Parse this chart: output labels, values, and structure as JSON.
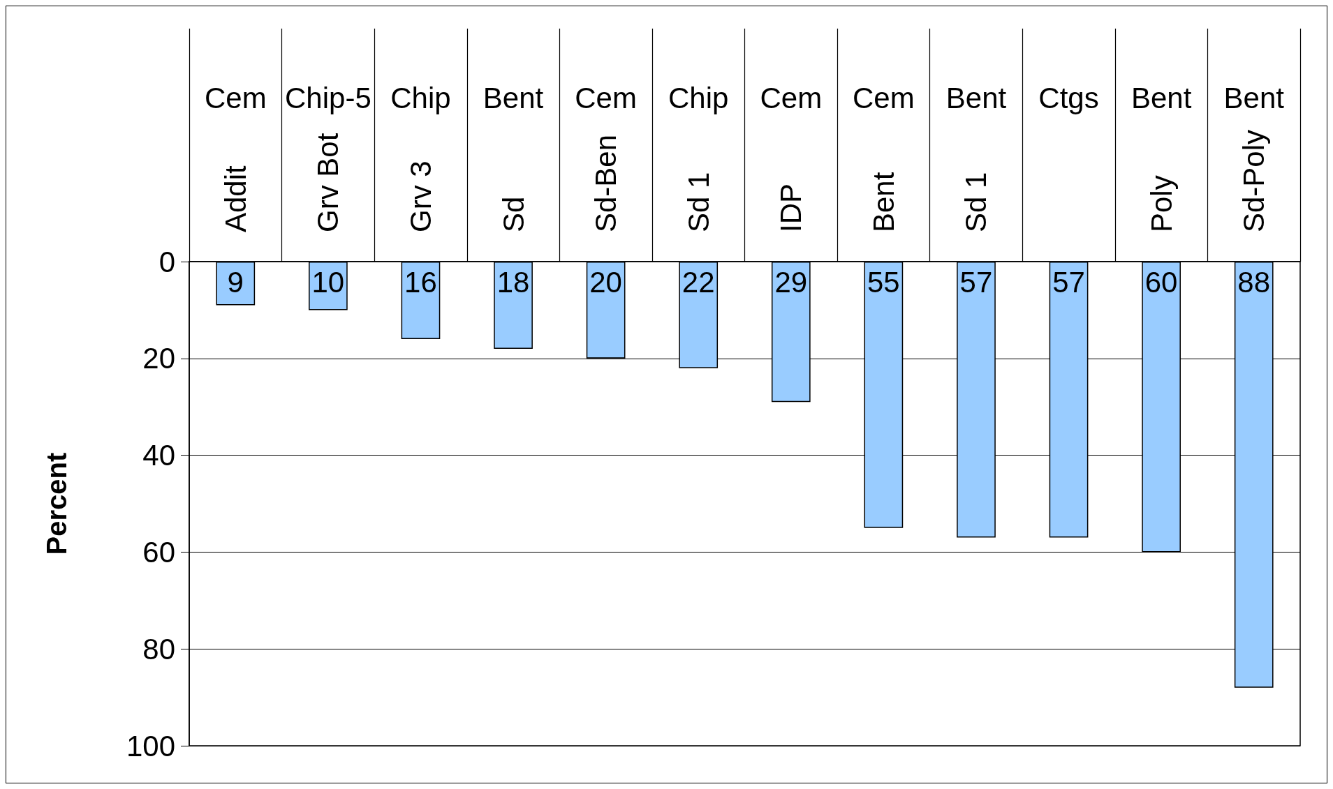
{
  "chart_data": {
    "type": "bar",
    "ylabel": "Percent",
    "categories": [
      "Addit",
      "Grv Bot",
      "Grv 3",
      "Sd",
      "Sd-Ben",
      "Sd 1",
      "IDP",
      "Bent",
      "Sd 1",
      null,
      "Poly",
      "Sd-Poly"
    ],
    "annotations": [
      "Cem",
      "Chip-5",
      "Chip",
      "Bent",
      "Cem",
      "Chip",
      "Cem",
      "Cem",
      "Bent",
      "Ctgs",
      "Bent",
      "Bent"
    ],
    "values": [
      9,
      10,
      16,
      18,
      20,
      22,
      29,
      55,
      57,
      57,
      60,
      88
    ],
    "color": "#99ccff",
    "ylim": [
      100,
      0
    ],
    "yticks": [
      0,
      20,
      40,
      60,
      80,
      100
    ],
    "grid": "y",
    "data_labels": true
  }
}
